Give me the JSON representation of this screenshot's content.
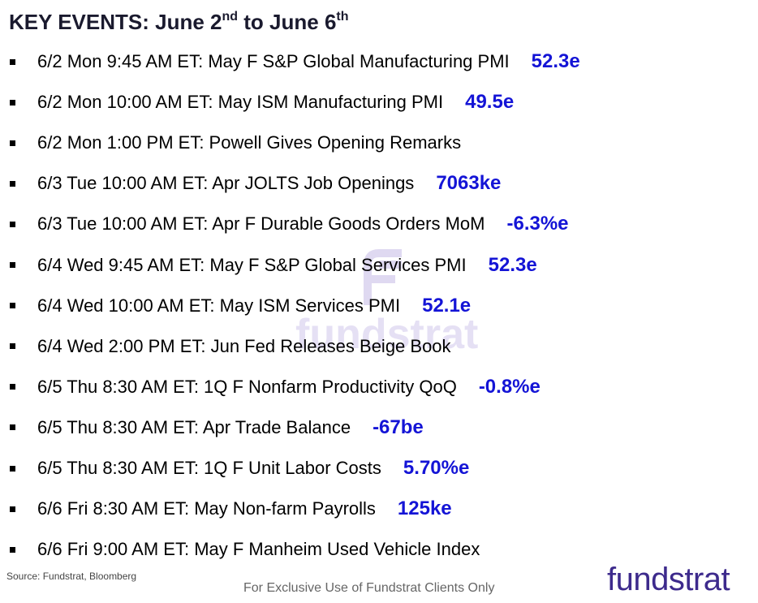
{
  "header": {
    "title": [
      "KEY EVENTS: June 2",
      "nd",
      " to June 6",
      "th"
    ]
  },
  "events": [
    {
      "text": "6/2 Mon 9:45 AM ET: May F S&P Global Manufacturing PMI",
      "estimate": "52.3e"
    },
    {
      "text": "6/2 Mon 10:00 AM ET: May ISM Manufacturing PMI",
      "estimate": "49.5e"
    },
    {
      "text": "6/2 Mon 1:00 PM ET: Powell Gives Opening Remarks"
    },
    {
      "text": "6/3 Tue 10:00 AM ET: Apr JOLTS Job Openings",
      "estimate": "7063ke"
    },
    {
      "text": "6/3 Tue 10:00 AM ET: Apr F Durable Goods Orders MoM",
      "estimate": "-6.3%e"
    },
    {
      "text": "6/4 Wed 9:45 AM ET: May F S&P Global Services PMI",
      "estimate": "52.3e"
    },
    {
      "text": "6/4 Wed 10:00 AM ET: May ISM Services PMI",
      "estimate": "52.1e"
    },
    {
      "text": "6/4 Wed 2:00 PM ET: Jun Fed Releases Beige Book"
    },
    {
      "text": "6/5 Thu 8:30 AM ET: 1Q F Nonfarm Productivity QoQ",
      "estimate": "-0.8%e"
    },
    {
      "text": "6/5 Thu 8:30 AM ET: Apr Trade Balance",
      "estimate": "-67be"
    },
    {
      "text": "6/5 Thu 8:30 AM ET: 1Q F Unit Labor Costs",
      "estimate": "5.70%e"
    },
    {
      "text": "6/6 Fri 8:30 AM ET: May Non-farm Payrolls",
      "estimate": "125ke"
    },
    {
      "text": "6/6 Fri 9:00 AM ET: May F Manheim Used Vehicle Index"
    }
  ],
  "watermark": "fundstrat",
  "source": "Source: Fundstrat, Bloomberg",
  "footer": "For Exclusive Use of Fundstrat Clients Only",
  "logo": "fundstrat"
}
